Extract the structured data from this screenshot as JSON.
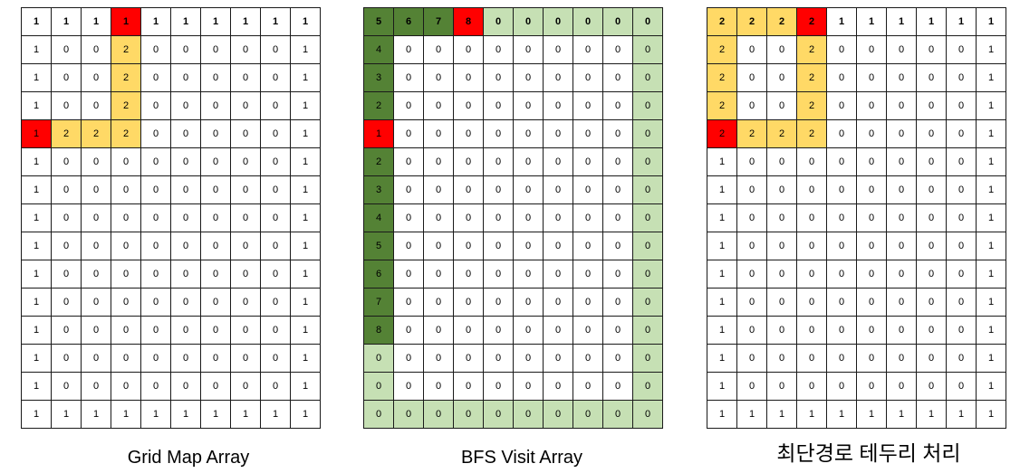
{
  "captions": {
    "grid_map": "Grid Map Array",
    "bfs_visit": "BFS Visit Array",
    "shortest_path": "최단경로 테두리 처리"
  },
  "colors": {
    "red": "#ff0000",
    "yellow": "#ffd966",
    "dark_green": "#548235",
    "light_green": "#c6e0b4"
  },
  "grids": {
    "grid_map": {
      "values": [
        [
          1,
          1,
          1,
          1,
          1,
          1,
          1,
          1,
          1,
          1
        ],
        [
          1,
          0,
          0,
          2,
          0,
          0,
          0,
          0,
          0,
          1
        ],
        [
          1,
          0,
          0,
          2,
          0,
          0,
          0,
          0,
          0,
          1
        ],
        [
          1,
          0,
          0,
          2,
          0,
          0,
          0,
          0,
          0,
          1
        ],
        [
          1,
          2,
          2,
          2,
          0,
          0,
          0,
          0,
          0,
          1
        ],
        [
          1,
          0,
          0,
          0,
          0,
          0,
          0,
          0,
          0,
          1
        ],
        [
          1,
          0,
          0,
          0,
          0,
          0,
          0,
          0,
          0,
          1
        ],
        [
          1,
          0,
          0,
          0,
          0,
          0,
          0,
          0,
          0,
          1
        ],
        [
          1,
          0,
          0,
          0,
          0,
          0,
          0,
          0,
          0,
          1
        ],
        [
          1,
          0,
          0,
          0,
          0,
          0,
          0,
          0,
          0,
          1
        ],
        [
          1,
          0,
          0,
          0,
          0,
          0,
          0,
          0,
          0,
          1
        ],
        [
          1,
          0,
          0,
          0,
          0,
          0,
          0,
          0,
          0,
          1
        ],
        [
          1,
          0,
          0,
          0,
          0,
          0,
          0,
          0,
          0,
          1
        ],
        [
          1,
          0,
          0,
          0,
          0,
          0,
          0,
          0,
          0,
          1
        ],
        [
          1,
          1,
          1,
          1,
          1,
          1,
          1,
          1,
          1,
          1
        ]
      ],
      "colors": [
        [
          "",
          "",
          "",
          "red",
          "",
          "",
          "",
          "",
          "",
          ""
        ],
        [
          "",
          "",
          "",
          "yel",
          "",
          "",
          "",
          "",
          "",
          ""
        ],
        [
          "",
          "",
          "",
          "yel",
          "",
          "",
          "",
          "",
          "",
          ""
        ],
        [
          "",
          "",
          "",
          "yel",
          "",
          "",
          "",
          "",
          "",
          ""
        ],
        [
          "red",
          "yel",
          "yel",
          "yel",
          "",
          "",
          "",
          "",
          "",
          ""
        ],
        [
          "",
          "",
          "",
          "",
          "",
          "",
          "",
          "",
          "",
          ""
        ],
        [
          "",
          "",
          "",
          "",
          "",
          "",
          "",
          "",
          "",
          ""
        ],
        [
          "",
          "",
          "",
          "",
          "",
          "",
          "",
          "",
          "",
          ""
        ],
        [
          "",
          "",
          "",
          "",
          "",
          "",
          "",
          "",
          "",
          ""
        ],
        [
          "",
          "",
          "",
          "",
          "",
          "",
          "",
          "",
          "",
          ""
        ],
        [
          "",
          "",
          "",
          "",
          "",
          "",
          "",
          "",
          "",
          ""
        ],
        [
          "",
          "",
          "",
          "",
          "",
          "",
          "",
          "",
          "",
          ""
        ],
        [
          "",
          "",
          "",
          "",
          "",
          "",
          "",
          "",
          "",
          ""
        ],
        [
          "",
          "",
          "",
          "",
          "",
          "",
          "",
          "",
          "",
          ""
        ],
        [
          "",
          "",
          "",
          "",
          "",
          "",
          "",
          "",
          "",
          ""
        ]
      ]
    },
    "bfs_visit": {
      "values": [
        [
          5,
          6,
          7,
          8,
          0,
          0,
          0,
          0,
          0,
          0
        ],
        [
          4,
          0,
          0,
          0,
          0,
          0,
          0,
          0,
          0,
          0
        ],
        [
          3,
          0,
          0,
          0,
          0,
          0,
          0,
          0,
          0,
          0
        ],
        [
          2,
          0,
          0,
          0,
          0,
          0,
          0,
          0,
          0,
          0
        ],
        [
          1,
          0,
          0,
          0,
          0,
          0,
          0,
          0,
          0,
          0
        ],
        [
          2,
          0,
          0,
          0,
          0,
          0,
          0,
          0,
          0,
          0
        ],
        [
          3,
          0,
          0,
          0,
          0,
          0,
          0,
          0,
          0,
          0
        ],
        [
          4,
          0,
          0,
          0,
          0,
          0,
          0,
          0,
          0,
          0
        ],
        [
          5,
          0,
          0,
          0,
          0,
          0,
          0,
          0,
          0,
          0
        ],
        [
          6,
          0,
          0,
          0,
          0,
          0,
          0,
          0,
          0,
          0
        ],
        [
          7,
          0,
          0,
          0,
          0,
          0,
          0,
          0,
          0,
          0
        ],
        [
          8,
          0,
          0,
          0,
          0,
          0,
          0,
          0,
          0,
          0
        ],
        [
          0,
          0,
          0,
          0,
          0,
          0,
          0,
          0,
          0,
          0
        ],
        [
          0,
          0,
          0,
          0,
          0,
          0,
          0,
          0,
          0,
          0
        ],
        [
          0,
          0,
          0,
          0,
          0,
          0,
          0,
          0,
          0,
          0
        ]
      ],
      "colors": [
        [
          "dg",
          "dg",
          "dg",
          "red",
          "lg",
          "lg",
          "lg",
          "lg",
          "lg",
          "lg"
        ],
        [
          "dg",
          "",
          "",
          "",
          "",
          "",
          "",
          "",
          "",
          "lg"
        ],
        [
          "dg",
          "",
          "",
          "",
          "",
          "",
          "",
          "",
          "",
          "lg"
        ],
        [
          "dg",
          "",
          "",
          "",
          "",
          "",
          "",
          "",
          "",
          "lg"
        ],
        [
          "red",
          "",
          "",
          "",
          "",
          "",
          "",
          "",
          "",
          "lg"
        ],
        [
          "dg",
          "",
          "",
          "",
          "",
          "",
          "",
          "",
          "",
          "lg"
        ],
        [
          "dg",
          "",
          "",
          "",
          "",
          "",
          "",
          "",
          "",
          "lg"
        ],
        [
          "dg",
          "",
          "",
          "",
          "",
          "",
          "",
          "",
          "",
          "lg"
        ],
        [
          "dg",
          "",
          "",
          "",
          "",
          "",
          "",
          "",
          "",
          "lg"
        ],
        [
          "dg",
          "",
          "",
          "",
          "",
          "",
          "",
          "",
          "",
          "lg"
        ],
        [
          "dg",
          "",
          "",
          "",
          "",
          "",
          "",
          "",
          "",
          "lg"
        ],
        [
          "dg",
          "",
          "",
          "",
          "",
          "",
          "",
          "",
          "",
          "lg"
        ],
        [
          "lg",
          "",
          "",
          "",
          "",
          "",
          "",
          "",
          "",
          "lg"
        ],
        [
          "lg",
          "",
          "",
          "",
          "",
          "",
          "",
          "",
          "",
          "lg"
        ],
        [
          "lg",
          "lg",
          "lg",
          "lg",
          "lg",
          "lg",
          "lg",
          "lg",
          "lg",
          "lg"
        ]
      ]
    },
    "shortest_path": {
      "values": [
        [
          2,
          2,
          2,
          2,
          1,
          1,
          1,
          1,
          1,
          1
        ],
        [
          2,
          0,
          0,
          2,
          0,
          0,
          0,
          0,
          0,
          1
        ],
        [
          2,
          0,
          0,
          2,
          0,
          0,
          0,
          0,
          0,
          1
        ],
        [
          2,
          0,
          0,
          2,
          0,
          0,
          0,
          0,
          0,
          1
        ],
        [
          2,
          2,
          2,
          2,
          0,
          0,
          0,
          0,
          0,
          1
        ],
        [
          1,
          0,
          0,
          0,
          0,
          0,
          0,
          0,
          0,
          1
        ],
        [
          1,
          0,
          0,
          0,
          0,
          0,
          0,
          0,
          0,
          1
        ],
        [
          1,
          0,
          0,
          0,
          0,
          0,
          0,
          0,
          0,
          1
        ],
        [
          1,
          0,
          0,
          0,
          0,
          0,
          0,
          0,
          0,
          1
        ],
        [
          1,
          0,
          0,
          0,
          0,
          0,
          0,
          0,
          0,
          1
        ],
        [
          1,
          0,
          0,
          0,
          0,
          0,
          0,
          0,
          0,
          1
        ],
        [
          1,
          0,
          0,
          0,
          0,
          0,
          0,
          0,
          0,
          1
        ],
        [
          1,
          0,
          0,
          0,
          0,
          0,
          0,
          0,
          0,
          1
        ],
        [
          1,
          0,
          0,
          0,
          0,
          0,
          0,
          0,
          0,
          1
        ],
        [
          1,
          1,
          1,
          1,
          1,
          1,
          1,
          1,
          1,
          1
        ]
      ],
      "colors": [
        [
          "yel",
          "yel",
          "yel",
          "red",
          "",
          "",
          "",
          "",
          "",
          ""
        ],
        [
          "yel",
          "",
          "",
          "yel",
          "",
          "",
          "",
          "",
          "",
          ""
        ],
        [
          "yel",
          "",
          "",
          "yel",
          "",
          "",
          "",
          "",
          "",
          ""
        ],
        [
          "yel",
          "",
          "",
          "yel",
          "",
          "",
          "",
          "",
          "",
          ""
        ],
        [
          "red",
          "yel",
          "yel",
          "yel",
          "",
          "",
          "",
          "",
          "",
          ""
        ],
        [
          "",
          "",
          "",
          "",
          "",
          "",
          "",
          "",
          "",
          ""
        ],
        [
          "",
          "",
          "",
          "",
          "",
          "",
          "",
          "",
          "",
          ""
        ],
        [
          "",
          "",
          "",
          "",
          "",
          "",
          "",
          "",
          "",
          ""
        ],
        [
          "",
          "",
          "",
          "",
          "",
          "",
          "",
          "",
          "",
          ""
        ],
        [
          "",
          "",
          "",
          "",
          "",
          "",
          "",
          "",
          "",
          ""
        ],
        [
          "",
          "",
          "",
          "",
          "",
          "",
          "",
          "",
          "",
          ""
        ],
        [
          "",
          "",
          "",
          "",
          "",
          "",
          "",
          "",
          "",
          ""
        ],
        [
          "",
          "",
          "",
          "",
          "",
          "",
          "",
          "",
          "",
          ""
        ],
        [
          "",
          "",
          "",
          "",
          "",
          "",
          "",
          "",
          "",
          ""
        ],
        [
          "",
          "",
          "",
          "",
          "",
          "",
          "",
          "",
          "",
          ""
        ]
      ]
    }
  }
}
